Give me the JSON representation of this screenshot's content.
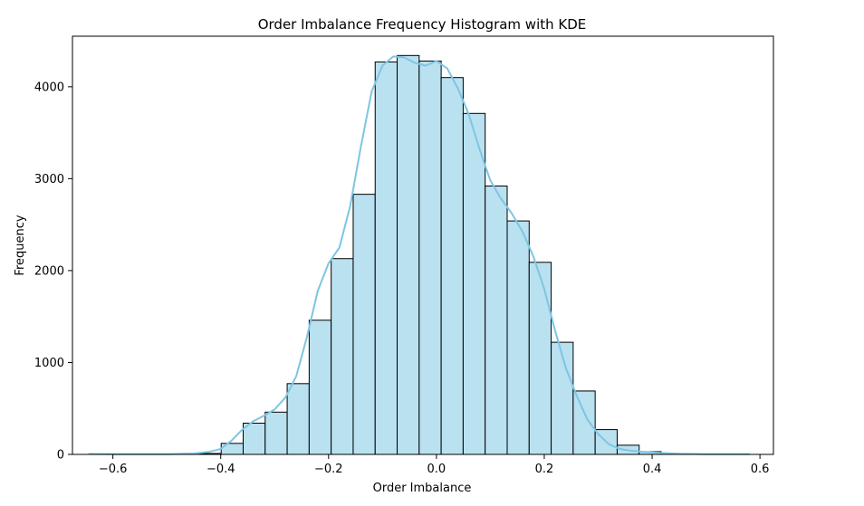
{
  "chart_data": {
    "type": "bar",
    "title": "Order Imbalance Frequency Histogram with KDE",
    "xlabel": "Order Imbalance",
    "ylabel": "Frequency",
    "xlim": [
      -0.675,
      0.625
    ],
    "ylim": [
      0,
      4550
    ],
    "xticks": [
      -0.6,
      -0.4,
      -0.2,
      0.0,
      0.2,
      0.4,
      0.6
    ],
    "xtick_labels": [
      "−0.6",
      "−0.4",
      "−0.2",
      "0.0",
      "0.2",
      "0.4",
      "0.6"
    ],
    "yticks": [
      0,
      1000,
      2000,
      3000,
      4000
    ],
    "ytick_labels": [
      "0",
      "1000",
      "2000",
      "3000",
      "4000"
    ],
    "grid": false,
    "legend": false,
    "bin_edges": [
      -0.644,
      -0.6032,
      -0.5624,
      -0.5216,
      -0.4808,
      -0.44,
      -0.3992,
      -0.3584,
      -0.3176,
      -0.2768,
      -0.236,
      -0.1952,
      -0.1544,
      -0.1136,
      -0.0728,
      -0.032,
      0.0088,
      0.0496,
      0.0904,
      0.1312,
      0.172,
      0.2128,
      0.2536,
      0.2944,
      0.3352,
      0.376,
      0.4168,
      0.4576,
      0.4984,
      0.5392,
      0.58
    ],
    "counts": [
      3,
      0,
      0,
      0,
      3,
      10,
      120,
      340,
      460,
      770,
      1460,
      2130,
      2830,
      4270,
      4340,
      4280,
      4100,
      3710,
      2920,
      2540,
      2090,
      1220,
      690,
      270,
      100,
      30,
      5,
      2,
      0,
      1
    ],
    "kde": {
      "name": "KDE",
      "x": [
        -0.644,
        -0.6,
        -0.55,
        -0.5,
        -0.45,
        -0.42,
        -0.4,
        -0.38,
        -0.36,
        -0.34,
        -0.32,
        -0.3,
        -0.28,
        -0.26,
        -0.24,
        -0.22,
        -0.2,
        -0.18,
        -0.16,
        -0.14,
        -0.12,
        -0.1,
        -0.08,
        -0.06,
        -0.04,
        -0.02,
        0.0,
        0.02,
        0.04,
        0.06,
        0.08,
        0.1,
        0.12,
        0.14,
        0.16,
        0.18,
        0.2,
        0.22,
        0.24,
        0.26,
        0.28,
        0.3,
        0.32,
        0.34,
        0.36,
        0.38,
        0.4,
        0.42,
        0.45,
        0.5,
        0.55,
        0.58
      ],
      "y": [
        5,
        3,
        2,
        3,
        10,
        30,
        60,
        150,
        270,
        360,
        420,
        490,
        620,
        850,
        1280,
        1780,
        2080,
        2250,
        2700,
        3350,
        3950,
        4230,
        4330,
        4320,
        4260,
        4230,
        4280,
        4200,
        3980,
        3700,
        3320,
        2980,
        2780,
        2620,
        2420,
        2150,
        1800,
        1350,
        940,
        640,
        380,
        220,
        110,
        60,
        40,
        30,
        22,
        15,
        8,
        3,
        2,
        2
      ]
    },
    "colors": {
      "bar_fill": "#b9e1f0",
      "bar_edge": "#000000",
      "kde_line": "#7ec5e3"
    }
  }
}
